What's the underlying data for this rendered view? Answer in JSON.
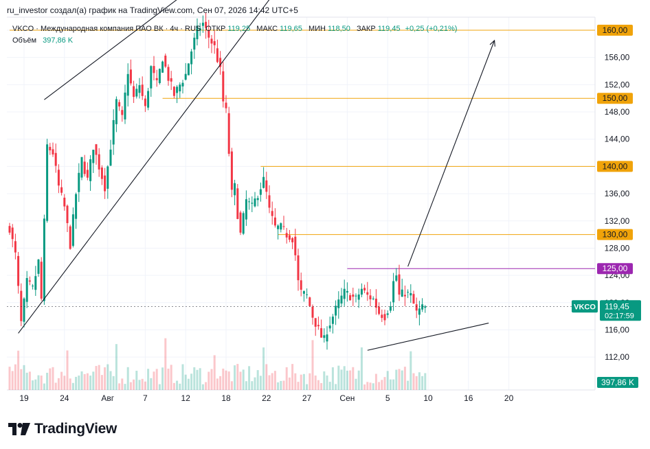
{
  "header": {
    "credit": "ru_investor создал(а) график на TradingView.com, Сен 07, 2026 14:42 UTC+5"
  },
  "legend": {
    "symbol_line": "VKCO · Международная компания ПАО ВК · 4ч · RUS",
    "open_label": "ОТКР",
    "open_value": "119,25",
    "high_label": "МАКС",
    "high_value": "119,65",
    "low_label": "МИН",
    "low_value": "118,50",
    "close_label": "ЗАКР",
    "close_value": "119,45",
    "change": "+0,25 (+0,21%)",
    "volume_label": "Объём",
    "volume_value": "397,86 K"
  },
  "price_badge": {
    "symbol": "VKCO",
    "price": "119,45",
    "countdown": "02:17:59"
  },
  "volume_badge": "397,86 K",
  "logo": "TradingView",
  "colors": {
    "up": "#089981",
    "down": "#f23645",
    "level": "#f0a30a",
    "resistance": "#9c27b0",
    "trendline": "#131722",
    "grid": "#f0f3fa",
    "badge_green": "#089981"
  },
  "chart_data": {
    "type": "candlestick",
    "ylim": [
      109.5,
      161.5
    ],
    "y_ticks": [
      "112,00",
      "116,00",
      "120,00",
      "124,00",
      "128,00",
      "132,00",
      "136,00",
      "140,00",
      "144,00",
      "148,00",
      "152,00",
      "156,00",
      "160,00"
    ],
    "x_ticks": [
      {
        "label": "19",
        "idx": 5
      },
      {
        "label": "24",
        "idx": 19
      },
      {
        "label": "Авг",
        "idx": 34
      },
      {
        "label": "7",
        "idx": 47
      },
      {
        "label": "12",
        "idx": 61
      },
      {
        "label": "18",
        "idx": 75
      },
      {
        "label": "22",
        "idx": 89
      },
      {
        "label": "27",
        "idx": 103
      },
      {
        "label": "Сен",
        "idx": 117
      },
      {
        "label": "5",
        "idx": 131
      },
      {
        "label": "10",
        "idx": 145
      },
      {
        "label": "16",
        "idx": 159
      },
      {
        "label": "20",
        "idx": 173
      }
    ],
    "horizontal_levels": [
      {
        "label": "160,00",
        "value": 160,
        "from_idx": 0,
        "color": "level"
      },
      {
        "label": "150,00",
        "value": 150,
        "from_idx": 53,
        "color": "level"
      },
      {
        "label": "140,00",
        "value": 140,
        "from_idx": 87,
        "color": "level"
      },
      {
        "label": "130,00",
        "value": 130,
        "from_idx": 93,
        "color": "level"
      },
      {
        "label": "125,00",
        "value": 125,
        "from_idx": 117,
        "color": "resistance"
      }
    ],
    "trendlines": [
      {
        "x1": 12,
        "y1": 149.8,
        "x2": 58,
        "y2": 164.5
      },
      {
        "x1": 3,
        "y1": 115.5,
        "x2": 90,
        "y2": 164.5
      },
      {
        "x1": 124,
        "y1": 113.0,
        "x2": 166,
        "y2": 117.0
      },
      {
        "x1": 138,
        "y1": 125.3,
        "x2": 168,
        "y2": 158.5
      }
    ],
    "arrowheads": [
      {
        "at": 3
      }
    ],
    "last_price": 119.45,
    "anchors": [
      [
        0,
        131
      ],
      [
        2,
        127
      ],
      [
        4,
        117
      ],
      [
        6,
        123
      ],
      [
        8,
        122
      ],
      [
        10,
        126
      ],
      [
        11,
        120.5
      ],
      [
        13,
        143
      ],
      [
        15,
        142
      ],
      [
        17,
        137
      ],
      [
        19,
        134
      ],
      [
        21,
        128.5
      ],
      [
        23,
        136
      ],
      [
        25,
        141
      ],
      [
        27,
        138
      ],
      [
        29,
        143
      ],
      [
        31,
        140
      ],
      [
        33,
        137
      ],
      [
        35,
        143
      ],
      [
        37,
        149.5
      ],
      [
        39,
        147
      ],
      [
        41,
        154
      ],
      [
        43,
        150
      ],
      [
        45,
        152
      ],
      [
        47,
        148.5
      ],
      [
        49,
        154.5
      ],
      [
        51,
        152
      ],
      [
        53,
        156
      ],
      [
        55,
        153
      ],
      [
        57,
        150.5
      ],
      [
        59,
        152
      ],
      [
        61,
        153.5
      ],
      [
        63,
        157
      ],
      [
        65,
        160
      ],
      [
        67,
        161
      ],
      [
        69,
        159
      ],
      [
        71,
        157.5
      ],
      [
        73,
        154
      ],
      [
        74,
        149.5
      ],
      [
        75,
        148
      ],
      [
        76,
        142
      ],
      [
        77,
        136
      ],
      [
        78,
        137
      ],
      [
        79,
        133
      ],
      [
        80,
        130
      ],
      [
        82,
        135
      ],
      [
        84,
        134
      ],
      [
        86,
        136
      ],
      [
        88,
        138
      ],
      [
        89,
        136
      ],
      [
        90,
        133.5
      ],
      [
        92,
        131
      ],
      [
        94,
        131
      ],
      [
        96,
        130
      ],
      [
        98,
        129.5
      ],
      [
        99,
        127
      ],
      [
        100,
        123
      ],
      [
        101,
        121.5
      ],
      [
        103,
        121
      ],
      [
        105,
        118
      ],
      [
        107,
        116
      ],
      [
        108,
        115
      ],
      [
        109,
        114.5
      ],
      [
        110,
        116
      ],
      [
        112,
        118
      ],
      [
        114,
        120
      ],
      [
        116,
        121.5
      ],
      [
        118,
        121
      ],
      [
        120,
        120.5
      ],
      [
        122,
        122
      ],
      [
        124,
        121
      ],
      [
        126,
        120.5
      ],
      [
        128,
        118.5
      ],
      [
        130,
        118
      ],
      [
        132,
        120
      ],
      [
        133,
        123
      ],
      [
        134,
        124
      ],
      [
        135,
        121
      ],
      [
        137,
        121.5
      ],
      [
        139,
        121
      ],
      [
        141,
        118.5
      ],
      [
        143,
        119.25
      ],
      [
        144,
        119.45
      ]
    ]
  }
}
